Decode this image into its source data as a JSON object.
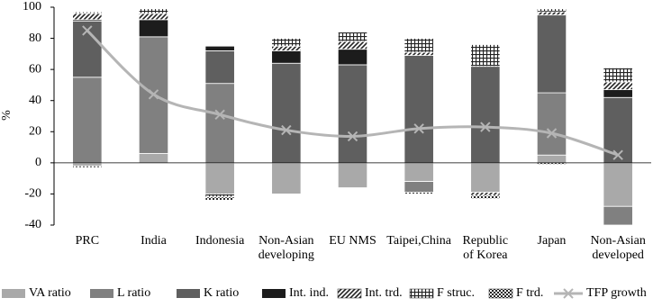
{
  "chart_data": {
    "type": "stacked-bar-line",
    "y_label": "%",
    "categories": [
      [
        "PRC"
      ],
      [
        "India"
      ],
      [
        "Indonesia"
      ],
      [
        "Non-Asian",
        "developing"
      ],
      [
        "EU NMS"
      ],
      [
        "Taipei,China"
      ],
      [
        "Republic",
        "of Korea"
      ],
      [
        "Japan"
      ],
      [
        "Non-Asian",
        "developed"
      ]
    ],
    "ylim": [
      -40,
      100
    ],
    "yticks": [
      -40,
      -20,
      0,
      20,
      40,
      60,
      80,
      100
    ],
    "series": [
      {
        "name": "VA ratio",
        "color": "#a9a9a9",
        "pattern": "solid",
        "values": [
          -2,
          6,
          -20,
          -20,
          -16,
          -12,
          -19,
          5,
          -28
        ]
      },
      {
        "name": "L ratio",
        "color": "#808080",
        "pattern": "solid",
        "values": [
          55,
          75,
          51,
          0,
          0,
          -7,
          0,
          40,
          -12
        ]
      },
      {
        "name": "K ratio",
        "color": "#5f5f5f",
        "pattern": "solid",
        "values": [
          36,
          0,
          21,
          64,
          63,
          69,
          62,
          50,
          42
        ]
      },
      {
        "name": "Int. ind.",
        "color": "#1c1c1c",
        "pattern": "solid",
        "values": [
          1,
          11,
          3,
          8,
          10,
          0,
          0,
          0,
          5
        ]
      },
      {
        "name": "Int. trd.",
        "color": "#222222",
        "pattern": "diagonal",
        "values": [
          4,
          4,
          0,
          3,
          5,
          2,
          -2,
          2,
          5
        ]
      },
      {
        "name": "F struc.",
        "color": "#222222",
        "pattern": "grid",
        "values": [
          1,
          3,
          -2,
          5,
          6,
          9,
          14,
          2,
          9
        ]
      },
      {
        "name": "F trd.",
        "color": "#222222",
        "pattern": "checker",
        "values": [
          -1,
          0,
          -2,
          0,
          0,
          -1,
          -2,
          -1,
          0
        ]
      },
      {
        "name": "TFP growth",
        "color": "#b5b5b5",
        "kind": "line",
        "values": [
          85,
          44,
          31,
          21,
          17,
          22,
          23,
          19,
          5
        ]
      }
    ]
  }
}
